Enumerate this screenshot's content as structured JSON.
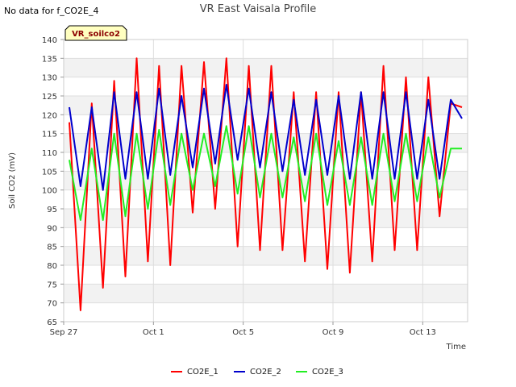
{
  "notice": "No data for f_CO2E_4",
  "chart_data": {
    "type": "line",
    "title": "VR East Vaisala Profile",
    "xlabel": "Time",
    "ylabel": "Soil CO2 (mV)",
    "site_tag": "VR_soilco2",
    "ylim": [
      65,
      140
    ],
    "yticks": [
      65,
      70,
      75,
      80,
      85,
      90,
      95,
      100,
      105,
      110,
      115,
      120,
      125,
      130,
      135,
      140
    ],
    "xlim": [
      "2023-09-27",
      "2023-10-15"
    ],
    "xticks": [
      {
        "value": "2023-09-27",
        "label": "Sep 27"
      },
      {
        "value": "2023-10-01",
        "label": "Oct 1"
      },
      {
        "value": "2023-10-05",
        "label": "Oct 5"
      },
      {
        "value": "2023-10-09",
        "label": "Oct 9"
      },
      {
        "value": "2023-10-13",
        "label": "Oct 13"
      }
    ],
    "legend_position": "bottom",
    "grid": true,
    "x": [
      "2023-09-27 06:00",
      "2023-09-27 18:00",
      "2023-09-28 06:00",
      "2023-09-28 18:00",
      "2023-09-29 06:00",
      "2023-09-29 18:00",
      "2023-09-30 06:00",
      "2023-09-30 18:00",
      "2023-10-01 06:00",
      "2023-10-01 18:00",
      "2023-10-02 06:00",
      "2023-10-02 18:00",
      "2023-10-03 06:00",
      "2023-10-03 18:00",
      "2023-10-04 06:00",
      "2023-10-04 18:00",
      "2023-10-05 06:00",
      "2023-10-05 18:00",
      "2023-10-06 06:00",
      "2023-10-06 18:00",
      "2023-10-07 06:00",
      "2023-10-07 18:00",
      "2023-10-08 06:00",
      "2023-10-08 18:00",
      "2023-10-09 06:00",
      "2023-10-09 18:00",
      "2023-10-10 06:00",
      "2023-10-10 18:00",
      "2023-10-11 06:00",
      "2023-10-11 18:00",
      "2023-10-12 06:00",
      "2023-10-12 18:00",
      "2023-10-13 06:00",
      "2023-10-13 18:00",
      "2023-10-14 06:00",
      "2023-10-14 18:00"
    ],
    "series": [
      {
        "name": "CO2E_1",
        "color": "#ff0000",
        "values": [
          118,
          68,
          123,
          74,
          129,
          77,
          135,
          81,
          133,
          80,
          133,
          94,
          134,
          95,
          135,
          85,
          133,
          84,
          133,
          84,
          126,
          81,
          126,
          79,
          126,
          78,
          126,
          81,
          133,
          84,
          130,
          84,
          130,
          93,
          123,
          122
        ]
      },
      {
        "name": "CO2E_2",
        "color": "#0000cc",
        "values": [
          122,
          101,
          122,
          100,
          126,
          103,
          126,
          103,
          127,
          104,
          125,
          106,
          127,
          107,
          128,
          108,
          127,
          106,
          126,
          105,
          124,
          104,
          124,
          104,
          125,
          103,
          126,
          103,
          126,
          103,
          126,
          103,
          124,
          103,
          124,
          119
        ]
      },
      {
        "name": "CO2E_3",
        "color": "#22ee22",
        "values": [
          108,
          92,
          111,
          92,
          115,
          93,
          115,
          95,
          116,
          96,
          115,
          100,
          115,
          101,
          117,
          99,
          117,
          98,
          115,
          98,
          114,
          97,
          115,
          96,
          113,
          96,
          114,
          96,
          115,
          97,
          115,
          97,
          114,
          98,
          111,
          111
        ]
      }
    ]
  }
}
